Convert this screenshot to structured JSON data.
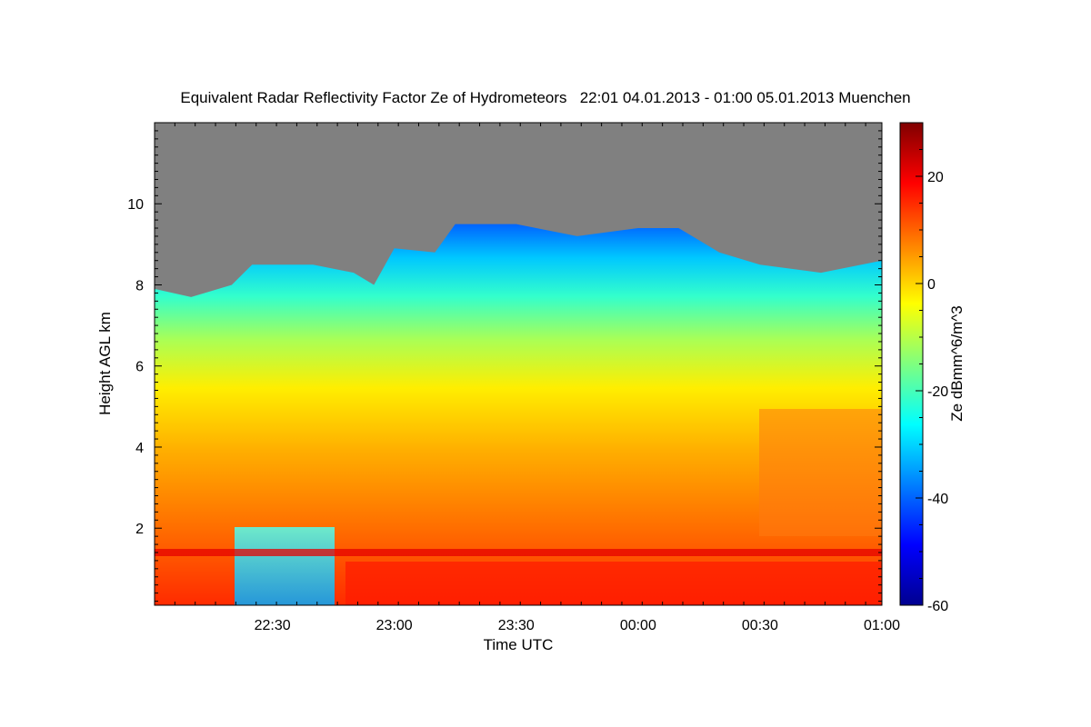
{
  "chart_data": {
    "type": "heatmap",
    "title": "Equivalent Radar Reflectivity Factor Ze of Hydrometeors   22:01 04.01.2013 - 01:00 05.01.2013 Muenchen",
    "xlabel": "Time UTC",
    "ylabel": "Height AGL km",
    "colorbar_label": "Ze dBmm^6/m^3",
    "x_range": [
      "22:01",
      "01:00"
    ],
    "x_ticks": [
      "22:30",
      "23:00",
      "23:30",
      "00:00",
      "00:30",
      "01:00"
    ],
    "y_range_km": [
      0.1,
      12.0
    ],
    "y_ticks": [
      2,
      4,
      6,
      8,
      10
    ],
    "colorbar_range": [
      -60,
      30
    ],
    "colorbar_ticks": [
      20,
      0,
      -20,
      -40,
      -60
    ],
    "colormap": [
      "#00008f",
      "#0000ff",
      "#00ffff",
      "#ffff00",
      "#ff0000",
      "#800000"
    ],
    "no_echo_color": "#808080",
    "echo_top_km": [
      [
        "22:01",
        7.9
      ],
      [
        "22:10",
        7.7
      ],
      [
        "22:20",
        8.0
      ],
      [
        "22:25",
        8.5
      ],
      [
        "22:40",
        8.5
      ],
      [
        "22:50",
        8.3
      ],
      [
        "22:55",
        8.0
      ],
      [
        "23:00",
        8.9
      ],
      [
        "23:10",
        8.8
      ],
      [
        "23:15",
        9.5
      ],
      [
        "23:30",
        9.5
      ],
      [
        "23:45",
        9.2
      ],
      [
        "00:00",
        9.4
      ],
      [
        "00:10",
        9.4
      ],
      [
        "00:20",
        8.8
      ],
      [
        "00:30",
        8.5
      ],
      [
        "00:45",
        8.3
      ],
      [
        "01:00",
        8.6
      ]
    ],
    "melting_layer_km": 1.4
  }
}
